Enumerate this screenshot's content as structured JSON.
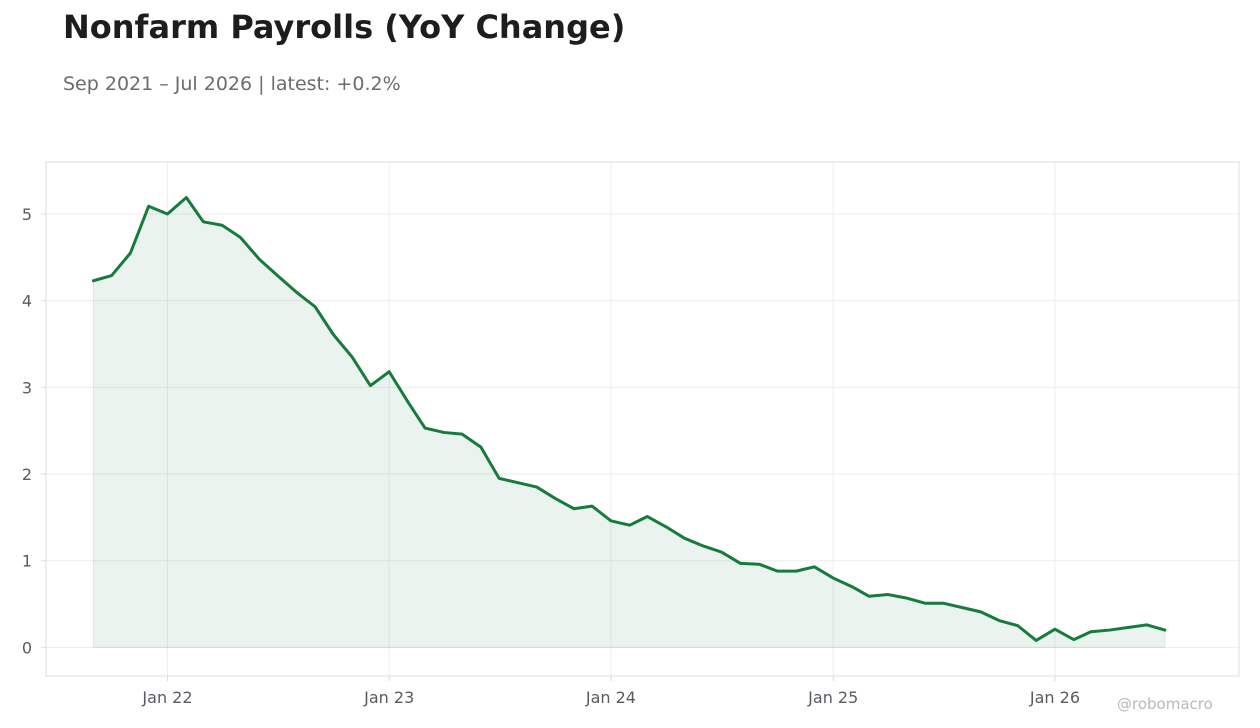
{
  "header": {
    "title": "Nonfarm Payrolls (YoY Change)",
    "subtitle": "Sep 2021 – Jul 2026 | latest: +0.2%"
  },
  "watermark": "@robomacro",
  "colors": {
    "line": "#177b3d",
    "fill": "#177b3d",
    "grid": "#ededed",
    "frame": "#dcdcdc",
    "tick_text": "#5a5a60"
  },
  "chart_data": {
    "type": "area",
    "title": "Nonfarm Payrolls (YoY Change)",
    "xlabel": "",
    "ylabel": "",
    "grid": true,
    "x_ticks": [
      {
        "label": "Jan 22",
        "date": "2022-01"
      },
      {
        "label": "Jan 23",
        "date": "2023-01"
      },
      {
        "label": "Jan 24",
        "date": "2024-01"
      },
      {
        "label": "Jan 25",
        "date": "2025-01"
      },
      {
        "label": "Jan 26",
        "date": "2026-01"
      }
    ],
    "y_ticks": [
      0,
      1,
      2,
      3,
      4,
      5
    ],
    "xlim": [
      "2021-06-15",
      "2026-10-31"
    ],
    "ylim": [
      -0.33,
      5.6
    ],
    "series": [
      {
        "x": [
          "2021-09",
          "2021-10",
          "2021-11",
          "2021-12",
          "2022-01",
          "2022-02",
          "2022-03",
          "2022-04",
          "2022-05",
          "2022-06",
          "2022-07",
          "2022-08",
          "2022-09",
          "2022-10",
          "2022-11",
          "2022-12",
          "2023-01",
          "2023-02",
          "2023-03",
          "2023-04",
          "2023-05",
          "2023-06",
          "2023-07",
          "2023-08",
          "2023-09",
          "2023-10",
          "2023-11",
          "2023-12",
          "2024-01",
          "2024-02",
          "2024-03",
          "2024-04",
          "2024-05",
          "2024-06",
          "2024-07",
          "2024-08",
          "2024-09",
          "2024-10",
          "2024-11",
          "2024-12",
          "2025-01",
          "2025-02",
          "2025-03",
          "2025-04",
          "2025-05",
          "2025-06",
          "2025-07",
          "2025-08",
          "2025-09",
          "2025-10",
          "2025-11",
          "2025-12",
          "2026-01",
          "2026-02",
          "2026-03",
          "2026-04",
          "2026-05",
          "2026-06",
          "2026-07"
        ],
        "values": [
          4.23,
          4.29,
          4.55,
          5.09,
          5.0,
          5.19,
          4.91,
          4.87,
          4.73,
          4.48,
          4.29,
          4.1,
          3.93,
          3.61,
          3.35,
          3.02,
          3.18,
          2.83,
          2.53,
          2.48,
          2.46,
          2.31,
          1.95,
          1.9,
          1.85,
          1.72,
          1.6,
          1.63,
          1.46,
          1.41,
          1.51,
          1.39,
          1.26,
          1.17,
          1.1,
          0.97,
          0.96,
          0.88,
          0.88,
          0.93,
          0.8,
          0.7,
          0.59,
          0.61,
          0.57,
          0.51,
          0.51,
          0.46,
          0.41,
          0.31,
          0.25,
          0.08,
          0.21,
          0.09,
          0.18,
          0.2,
          0.23,
          0.26,
          0.2
        ]
      }
    ]
  }
}
